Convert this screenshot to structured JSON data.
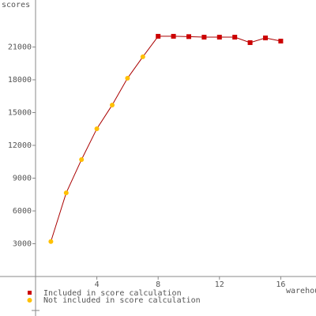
{
  "chart_data": {
    "type": "line",
    "xlabel": "warehouses",
    "ylabel": "scores",
    "x": [
      1,
      2,
      3,
      4,
      5,
      6,
      7,
      8,
      9,
      10,
      11,
      12,
      13,
      14,
      15,
      16
    ],
    "series": [
      {
        "name": "Included in score calculation",
        "color": "#cc0000",
        "marker": "square",
        "values": [
          null,
          null,
          null,
          null,
          null,
          null,
          null,
          21980,
          21980,
          21950,
          21900,
          21900,
          21900,
          21400,
          21830,
          21540
        ]
      },
      {
        "name": "Not included in score calculation",
        "color": "#ffc000",
        "marker": "circle",
        "values": [
          3200,
          7650,
          10700,
          13520,
          15690,
          18140,
          20100,
          null,
          null,
          null,
          null,
          null,
          null,
          null,
          null,
          null
        ]
      }
    ],
    "line_color": "#aa0000",
    "xlim": [
      0,
      18.3
    ],
    "ylim": [
      0,
      25300
    ],
    "xticks": [
      4,
      8,
      12,
      16
    ],
    "yticks": [
      3000,
      6000,
      9000,
      12000,
      15000,
      18000,
      21000
    ],
    "legend": "bottom-left"
  }
}
